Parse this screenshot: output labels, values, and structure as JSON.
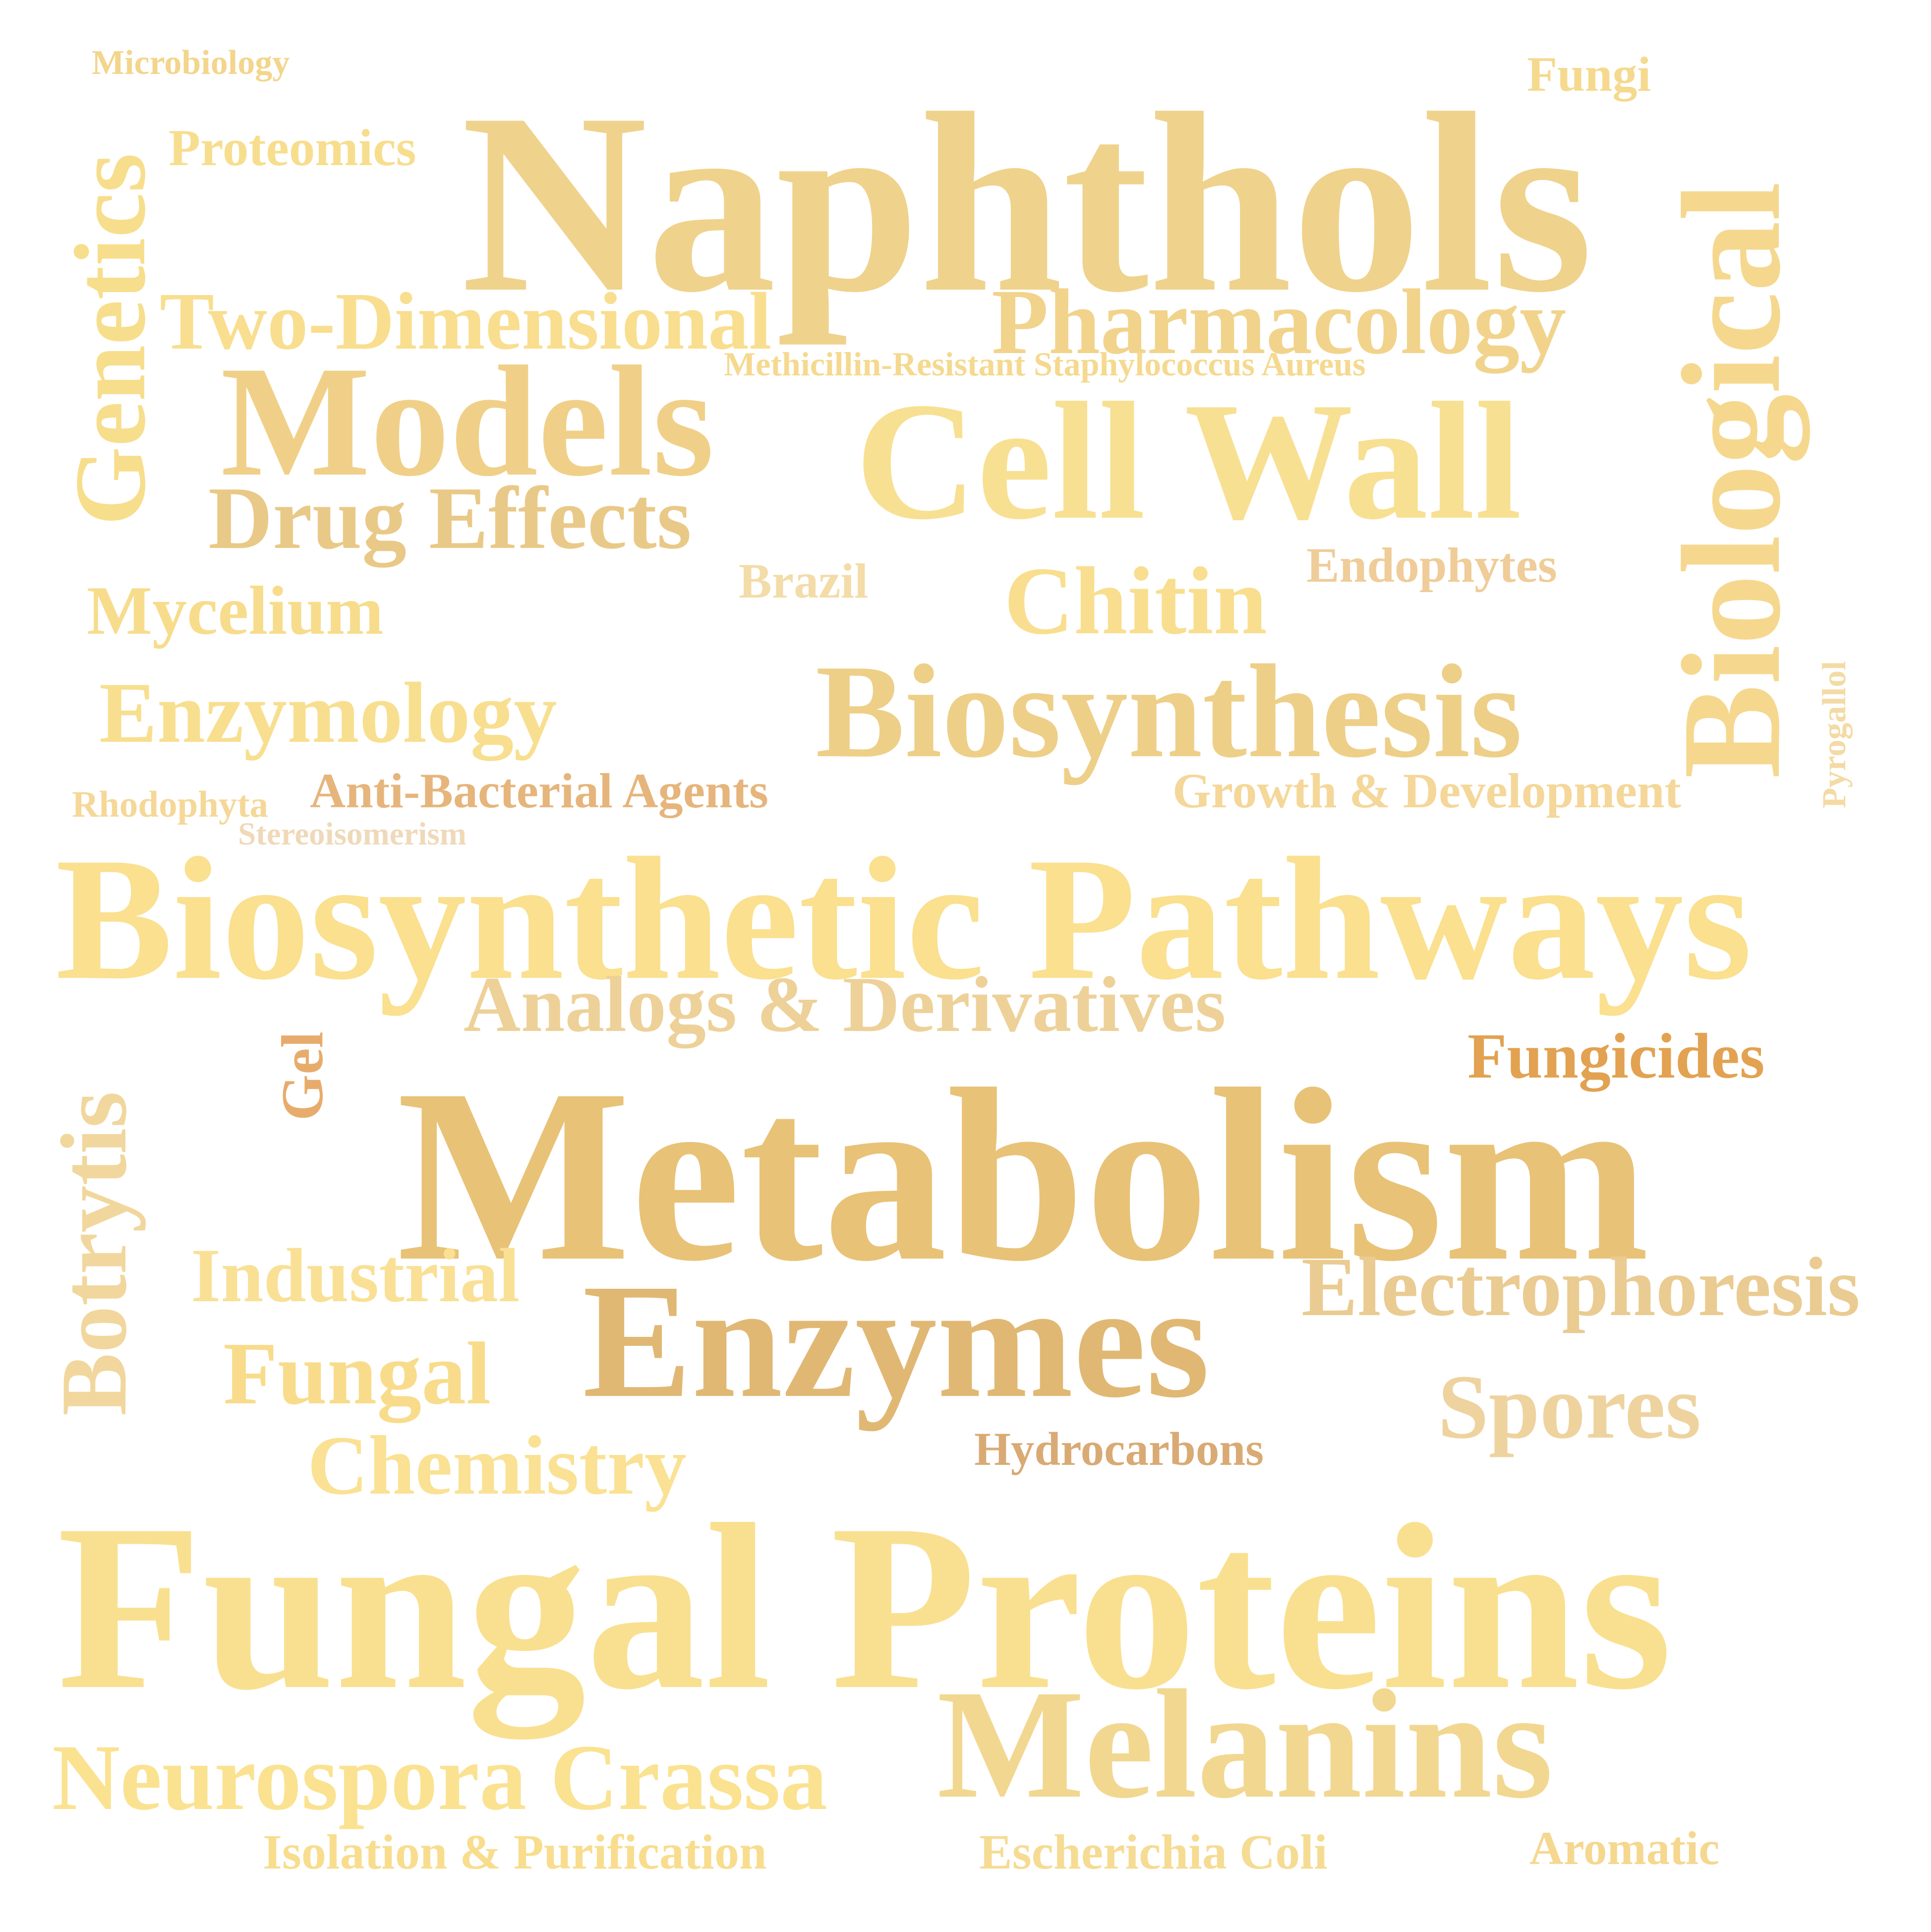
{
  "background_color": "#ffffff",
  "words": [
    {
      "id": "microbiology",
      "text": "Microbiology",
      "color": "#F3D58B",
      "orientation": "horizontal"
    },
    {
      "id": "fungi",
      "text": "Fungi",
      "color": "#F5D98E",
      "orientation": "horizontal"
    },
    {
      "id": "naphthols",
      "text": "Naphthols",
      "color": "#EFD28C",
      "orientation": "horizontal"
    },
    {
      "id": "proteomics",
      "text": "Proteomics",
      "color": "#F7DE8E",
      "orientation": "horizontal"
    },
    {
      "id": "biological",
      "text": "Biological",
      "color": "#F5D88E",
      "orientation": "vertical"
    },
    {
      "id": "genetics",
      "text": "Genetics",
      "color": "#F7DE8C",
      "orientation": "vertical"
    },
    {
      "id": "two-dimensional",
      "text": "Two-Dimensional",
      "color": "#F8DE8E",
      "orientation": "horizontal"
    },
    {
      "id": "pharmacology",
      "text": "Pharmacology",
      "color": "#F1D38B",
      "orientation": "horizontal"
    },
    {
      "id": "mrsa",
      "text": "Methicillin-Resistant Staphylococcus Aureus",
      "color": "#F5D98F",
      "orientation": "horizontal"
    },
    {
      "id": "models",
      "text": "Models",
      "color": "#F0D088",
      "orientation": "horizontal"
    },
    {
      "id": "cell-wall",
      "text": "Cell Wall",
      "color": "#F8E092",
      "orientation": "horizontal"
    },
    {
      "id": "drug-effects",
      "text": "Drug Effects",
      "color": "#E9C987",
      "orientation": "horizontal"
    },
    {
      "id": "brazil",
      "text": "Brazil",
      "color": "#F3DCA8",
      "orientation": "horizontal"
    },
    {
      "id": "endophytes",
      "text": "Endophytes",
      "color": "#EFCC98",
      "orientation": "horizontal"
    },
    {
      "id": "chitin",
      "text": "Chitin",
      "color": "#F8DE8E",
      "orientation": "horizontal"
    },
    {
      "id": "mycelium",
      "text": "Mycelium",
      "color": "#F7DC8C",
      "orientation": "horizontal"
    },
    {
      "id": "biosynthesis",
      "text": "Biosynthesis",
      "color": "#EECF88",
      "orientation": "horizontal"
    },
    {
      "id": "enzymology",
      "text": "Enzymology",
      "color": "#F8DF8F",
      "orientation": "horizontal"
    },
    {
      "id": "pyrogallol",
      "text": "Pyrogallol",
      "color": "#F4DAA4",
      "orientation": "vertical"
    },
    {
      "id": "anti-bacterial",
      "text": "Anti-Bacterial Agents",
      "color": "#E6B57C",
      "orientation": "horizontal"
    },
    {
      "id": "growth-dev",
      "text": "Growth & Development",
      "color": "#F4D799",
      "orientation": "horizontal"
    },
    {
      "id": "rhodophyta",
      "text": "Rhodophyta",
      "color": "#F5D898",
      "orientation": "horizontal"
    },
    {
      "id": "stereoisomerism",
      "text": "Stereoisomerism",
      "color": "#EFD9B9",
      "orientation": "horizontal"
    },
    {
      "id": "biosynthetic-pathways",
      "text": "Biosynthetic Pathways",
      "color": "#FAE08F",
      "orientation": "horizontal"
    },
    {
      "id": "analogs",
      "text": "Analogs & Derivatives",
      "color": "#EDD198",
      "orientation": "horizontal"
    },
    {
      "id": "gel",
      "text": "Gel",
      "color": "#E7AC6C",
      "orientation": "vertical"
    },
    {
      "id": "fungicides",
      "text": "Fungicides",
      "color": "#E2A251",
      "orientation": "horizontal"
    },
    {
      "id": "botrytis",
      "text": "Botrytis",
      "color": "#F1D79D",
      "orientation": "vertical"
    },
    {
      "id": "metabolism",
      "text": "Metabolism",
      "color": "#E8C277",
      "orientation": "horizontal"
    },
    {
      "id": "industrial",
      "text": "Industrial",
      "color": "#F9E095",
      "orientation": "horizontal"
    },
    {
      "id": "electrophoresis",
      "text": "Electrophoresis",
      "color": "#EACB91",
      "orientation": "horizontal"
    },
    {
      "id": "enzymes",
      "text": "Enzymes",
      "color": "#E0B874",
      "orientation": "horizontal"
    },
    {
      "id": "fungal",
      "text": "Fungal",
      "color": "#F8DC8B",
      "orientation": "horizontal"
    },
    {
      "id": "spores",
      "text": "Spores",
      "color": "#EED39F",
      "orientation": "horizontal"
    },
    {
      "id": "hydrocarbons",
      "text": "Hydrocarbons",
      "color": "#D9AA74",
      "orientation": "horizontal"
    },
    {
      "id": "chemistry",
      "text": "Chemistry",
      "color": "#FAE193",
      "orientation": "horizontal"
    },
    {
      "id": "fungal-proteins",
      "text": "Fungal Proteins",
      "color": "#F9E090",
      "orientation": "horizontal"
    },
    {
      "id": "melanins",
      "text": "Melanins",
      "color": "#F2D790",
      "orientation": "horizontal"
    },
    {
      "id": "neurospora",
      "text": "Neurospora Crassa",
      "color": "#FAE290",
      "orientation": "horizontal"
    },
    {
      "id": "isolation",
      "text": "Isolation & Purification",
      "color": "#F8DD8E",
      "orientation": "horizontal"
    },
    {
      "id": "escherichia",
      "text": "Escherichia Coli",
      "color": "#F6DB93",
      "orientation": "horizontal"
    },
    {
      "id": "aromatic",
      "text": "Aromatic",
      "color": "#F5D78F",
      "orientation": "horizontal"
    }
  ]
}
